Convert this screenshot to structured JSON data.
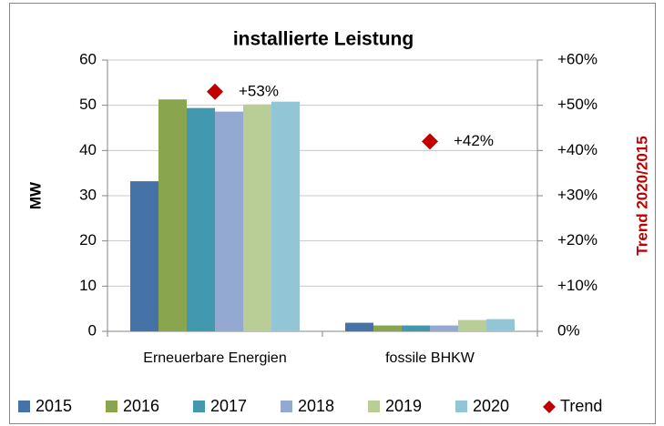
{
  "chart_data": {
    "type": "bar",
    "title": "installierte Leistung",
    "ylabel": "MW",
    "y2label": "Trend 2020/2015",
    "y2label_color": "#c00000",
    "categories": [
      "Erneuerbare Energien",
      "fossile BHKW"
    ],
    "series": [
      {
        "name": "2015",
        "color": "#4572a7",
        "values": [
          33.2,
          1.9
        ]
      },
      {
        "name": "2016",
        "color": "#89a54e",
        "values": [
          51.3,
          1.3
        ]
      },
      {
        "name": "2017",
        "color": "#4198af",
        "values": [
          49.4,
          1.3
        ]
      },
      {
        "name": "2018",
        "color": "#93a9d2",
        "values": [
          48.6,
          1.3
        ]
      },
      {
        "name": "2019",
        "color": "#b9cd96",
        "values": [
          50.2,
          2.5
        ]
      },
      {
        "name": "2020",
        "color": "#92c5d6",
        "values": [
          50.8,
          2.7
        ]
      },
      {
        "name": "Trend",
        "color": "#c00000",
        "type": "scatter",
        "marker": "diamond",
        "axis": "y2",
        "values": [
          53,
          42
        ],
        "value_labels": [
          "+53%",
          "+42%"
        ]
      }
    ],
    "ylim": [
      0,
      60
    ],
    "yticks": [
      0,
      10,
      20,
      30,
      40,
      50,
      60
    ],
    "y2lim": [
      0,
      60
    ],
    "y2ticks": [
      {
        "value": 0,
        "label": "0%"
      },
      {
        "value": 10,
        "label": "+10%"
      },
      {
        "value": 20,
        "label": "+20%"
      },
      {
        "value": 30,
        "label": "+30%"
      },
      {
        "value": 40,
        "label": "+40%"
      },
      {
        "value": 50,
        "label": "+50%"
      },
      {
        "value": 60,
        "label": "+60%"
      }
    ],
    "grid": true,
    "legend": "bottom"
  }
}
